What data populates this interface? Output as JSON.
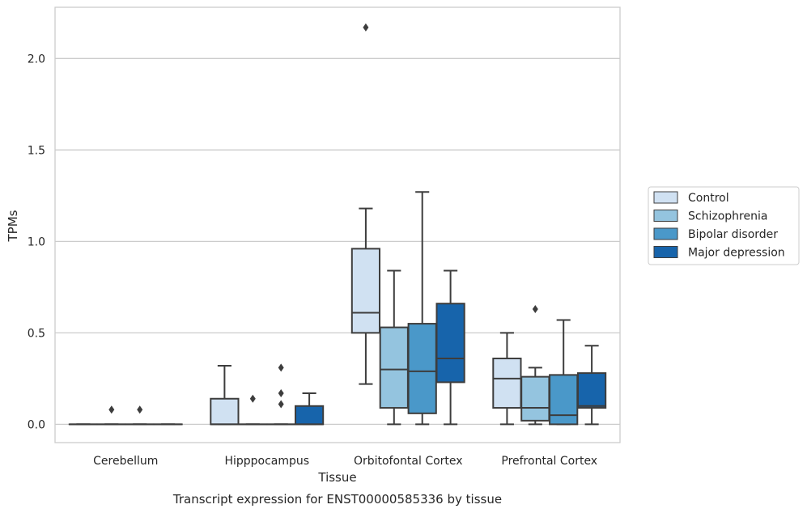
{
  "chart_data": {
    "type": "box",
    "caption": "Transcript expression for ENST00000585336 by tissue",
    "xlabel": "Tissue",
    "ylabel": "TPMs",
    "ylim": [
      -0.1,
      2.28
    ],
    "yticks": [
      0.0,
      0.5,
      1.0,
      1.5,
      2.0
    ],
    "ytick_labels": [
      "0.0",
      "0.5",
      "1.0",
      "1.5",
      "2.0"
    ],
    "grid": "horizontal",
    "legend_position": "right",
    "categories": [
      "Cerebellum",
      "Hipppocampus",
      "Orbitofontal Cortex",
      "Prefrontal Cortex"
    ],
    "series": [
      {
        "name": "Control",
        "color": "#d0e1f2",
        "boxes": [
          {
            "min": 0,
            "q1": 0,
            "median": 0,
            "q3": 0,
            "max": 0,
            "outliers": []
          },
          {
            "min": 0,
            "q1": 0,
            "median": 0,
            "q3": 0.14,
            "max": 0.32,
            "outliers": []
          },
          {
            "min": 0.22,
            "q1": 0.5,
            "median": 0.61,
            "q3": 0.96,
            "max": 1.18,
            "outliers": [
              2.17
            ]
          },
          {
            "min": 0,
            "q1": 0.09,
            "median": 0.25,
            "q3": 0.36,
            "max": 0.5,
            "outliers": []
          }
        ]
      },
      {
        "name": "Schizophrenia",
        "color": "#94c4df",
        "boxes": [
          {
            "min": 0,
            "q1": 0,
            "median": 0,
            "q3": 0,
            "max": 0,
            "outliers": [
              0.08
            ]
          },
          {
            "min": 0,
            "q1": 0,
            "median": 0,
            "q3": 0,
            "max": 0,
            "outliers": [
              0.14
            ]
          },
          {
            "min": 0,
            "q1": 0.09,
            "median": 0.3,
            "q3": 0.53,
            "max": 0.84,
            "outliers": []
          },
          {
            "min": 0,
            "q1": 0.02,
            "median": 0.09,
            "q3": 0.26,
            "max": 0.31,
            "outliers": [
              0.63
            ]
          }
        ]
      },
      {
        "name": "Bipolar disorder",
        "color": "#4a98c9",
        "boxes": [
          {
            "min": 0,
            "q1": 0,
            "median": 0,
            "q3": 0,
            "max": 0,
            "outliers": [
              0.08
            ]
          },
          {
            "min": 0,
            "q1": 0,
            "median": 0,
            "q3": 0,
            "max": 0,
            "outliers": [
              0.11,
              0.17,
              0.31
            ]
          },
          {
            "min": 0,
            "q1": 0.06,
            "median": 0.29,
            "q3": 0.55,
            "max": 1.27,
            "outliers": []
          },
          {
            "min": 0,
            "q1": 0,
            "median": 0.05,
            "q3": 0.27,
            "max": 0.57,
            "outliers": []
          }
        ]
      },
      {
        "name": "Major depression",
        "color": "#1764ab",
        "boxes": [
          {
            "min": 0,
            "q1": 0,
            "median": 0,
            "q3": 0,
            "max": 0,
            "outliers": []
          },
          {
            "min": 0,
            "q1": 0,
            "median": 0,
            "q3": 0.1,
            "max": 0.17,
            "outliers": []
          },
          {
            "min": 0,
            "q1": 0.23,
            "median": 0.36,
            "q3": 0.66,
            "max": 0.84,
            "outliers": []
          },
          {
            "min": 0,
            "q1": 0.09,
            "median": 0.1,
            "q3": 0.28,
            "max": 0.43,
            "outliers": []
          }
        ]
      }
    ]
  }
}
